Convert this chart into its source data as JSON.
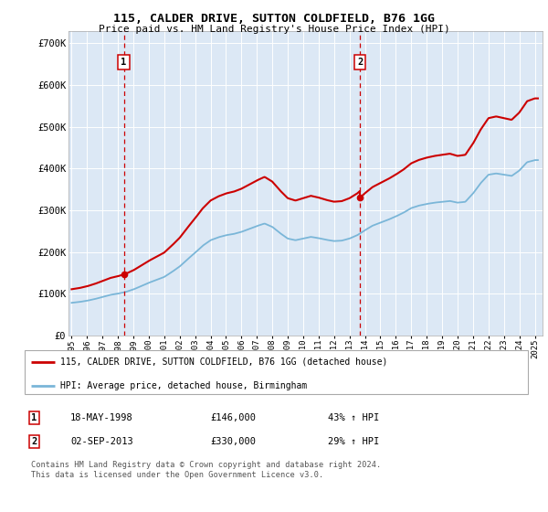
{
  "title1": "115, CALDER DRIVE, SUTTON COLDFIELD, B76 1GG",
  "title2": "Price paid vs. HM Land Registry's House Price Index (HPI)",
  "xlim_start": 1994.8,
  "xlim_end": 2025.5,
  "ylim_min": 0,
  "ylim_max": 730000,
  "yticks": [
    0,
    100000,
    200000,
    300000,
    400000,
    500000,
    600000,
    700000
  ],
  "ytick_labels": [
    "£0",
    "£100K",
    "£200K",
    "£300K",
    "£400K",
    "£500K",
    "£600K",
    "£700K"
  ],
  "sale1_year": 1998.38,
  "sale1_price": 146000,
  "sale2_year": 2013.67,
  "sale2_price": 330000,
  "hpi_color": "#7ab6d8",
  "sale_color": "#cc0000",
  "dashed_color": "#cc0000",
  "bg_plot": "#dce8f5",
  "grid_color": "#ffffff",
  "legend_label1": "115, CALDER DRIVE, SUTTON COLDFIELD, B76 1GG (detached house)",
  "legend_label2": "HPI: Average price, detached house, Birmingham",
  "note1_num": "1",
  "note1_date": "18-MAY-1998",
  "note1_price": "£146,000",
  "note1_hpi": "43% ↑ HPI",
  "note2_num": "2",
  "note2_date": "02-SEP-2013",
  "note2_price": "£330,000",
  "note2_hpi": "29% ↑ HPI",
  "footer": "Contains HM Land Registry data © Crown copyright and database right 2024.\nThis data is licensed under the Open Government Licence v3.0."
}
